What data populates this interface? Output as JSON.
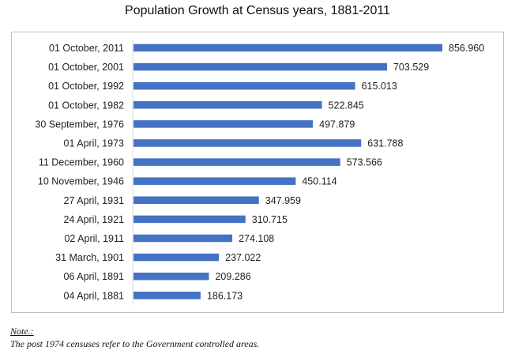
{
  "chart_data": {
    "type": "bar",
    "orientation": "horizontal",
    "title": "Population Growth at Census years, 1881-2011",
    "xlabel": "",
    "ylabel": "",
    "categories": [
      "01 October, 2011",
      "01 October, 2001",
      "01 October, 1992",
      "01 October, 1982",
      "30 September, 1976",
      "01 April, 1973",
      "11 December, 1960",
      "10 November, 1946",
      "27 April, 1931",
      "24 April, 1921",
      "02 April, 1911",
      "31 March, 1901",
      "06 April, 1891",
      "04 April, 1881"
    ],
    "values": [
      856.96,
      703.529,
      615.013,
      522.845,
      497.879,
      631.788,
      573.566,
      450.114,
      347.959,
      310.715,
      274.108,
      237.022,
      209.286,
      186.173
    ],
    "value_labels": [
      "856.960",
      "703.529",
      "615.013",
      "522.845",
      "497.879",
      "631.788",
      "573.566",
      "450.114",
      "347.959",
      "310.715",
      "274.108",
      "237.022",
      "209.286",
      "186.173"
    ],
    "xlim": [
      0,
      856.96
    ],
    "bar_color": "#4472C4",
    "axis_line_color": "#d9d9d9",
    "grid": false,
    "legend": "none"
  },
  "note": {
    "heading": "Note.:",
    "text": "The post 1974 censuses refer to the Government controlled areas."
  }
}
